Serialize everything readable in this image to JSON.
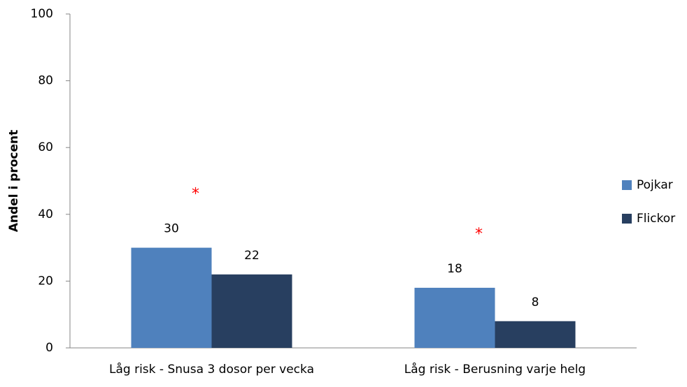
{
  "chart_data": {
    "type": "bar",
    "y_label": "Andel i procent",
    "categories": [
      "Låg risk - Snusa 3 dosor per vecka",
      "Låg risk - Berusning varje helg"
    ],
    "series": [
      {
        "name": "Pojkar",
        "color": "#4f81bd",
        "values": [
          30,
          18
        ]
      },
      {
        "name": "Flickor",
        "color": "#283f60",
        "values": [
          22,
          8
        ]
      }
    ],
    "annotations": [
      "*",
      "*"
    ],
    "annotation_color": "#ff0000",
    "ylim": [
      0,
      100
    ],
    "yticks": [
      0,
      20,
      40,
      60,
      80,
      100
    ],
    "grid": false,
    "legend": "right"
  }
}
